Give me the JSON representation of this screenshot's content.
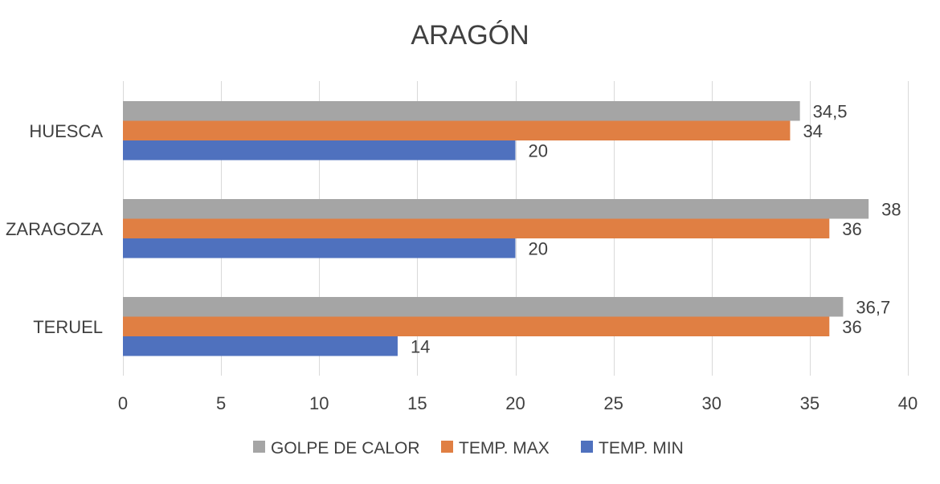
{
  "chart_data": {
    "type": "bar",
    "orientation": "horizontal",
    "title": "ARAGÓN",
    "categories": [
      "HUESCA",
      "ZARAGOZA",
      "TERUEL"
    ],
    "series": [
      {
        "name": "GOLPE DE CALOR",
        "color": "#a5a5a5",
        "values": [
          34.5,
          38,
          36.7
        ],
        "labels": [
          "34,5",
          "38",
          "36,7"
        ]
      },
      {
        "name": "TEMP. MAX",
        "color": "#e07f43",
        "values": [
          34,
          36,
          36
        ],
        "labels": [
          "34",
          "36",
          "36"
        ]
      },
      {
        "name": "TEMP. MIN",
        "color": "#4f71be",
        "values": [
          20,
          20,
          14
        ],
        "labels": [
          "20",
          "20",
          "14"
        ]
      }
    ],
    "legend_order": [
      0,
      1,
      2
    ],
    "xlim": [
      0,
      40
    ],
    "xticks": [
      0,
      5,
      10,
      15,
      20,
      25,
      30,
      35,
      40
    ],
    "grid": true,
    "legend": "bottom",
    "xlabel": "",
    "ylabel": ""
  }
}
